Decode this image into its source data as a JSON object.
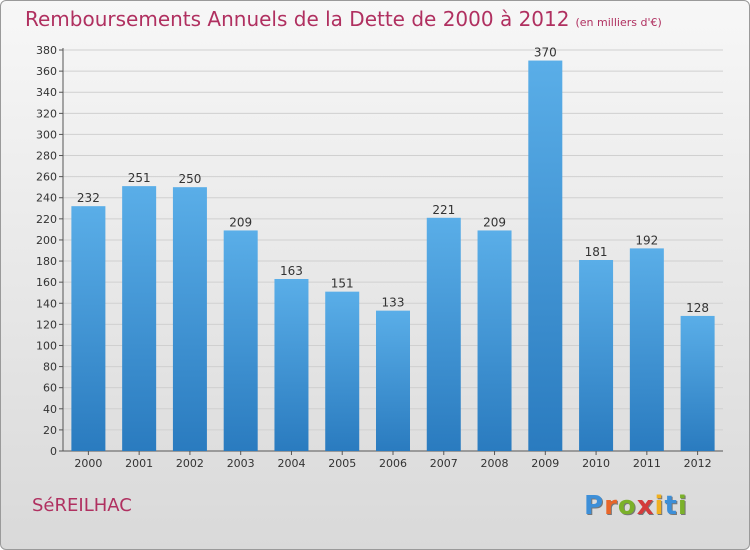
{
  "header": {
    "title": "Remboursements Annuels de la Dette de 2000 à 2012",
    "subtitle": "(en milliers d'€)"
  },
  "footer": {
    "town": "SéREILHAC",
    "logo": "Proxiti"
  },
  "colors": {
    "bar_light": "#5aaee8",
    "bar_dark": "#2a7bbf",
    "title": "#b03060",
    "grid": "#d0d0d0"
  },
  "chart_data": {
    "type": "bar",
    "categories": [
      "2000",
      "2001",
      "2002",
      "2003",
      "2004",
      "2005",
      "2006",
      "2007",
      "2008",
      "2009",
      "2010",
      "2011",
      "2012"
    ],
    "values": [
      232,
      251,
      250,
      209,
      163,
      151,
      133,
      221,
      209,
      370,
      181,
      192,
      128
    ],
    "title": "Remboursements Annuels de la Dette de 2000 à 2012",
    "xlabel": "",
    "ylabel": "",
    "ylim": [
      0,
      380
    ],
    "ytick_step": 20,
    "grid": true,
    "legend": "none"
  }
}
